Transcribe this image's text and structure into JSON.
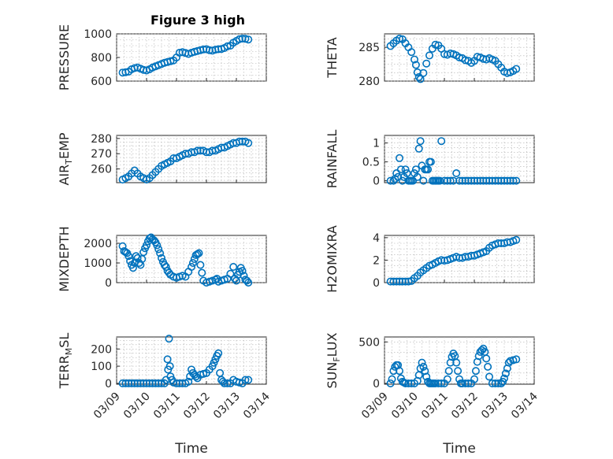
{
  "figure_title": "Figure 3 high",
  "colors": {
    "marker": "#0072BD",
    "axis": "#262626",
    "grid": "#b0b0b0"
  },
  "x_tick_labels": [
    "03/09",
    "03/10",
    "03/11",
    "03/12",
    "03/13",
    "03/14"
  ],
  "x_label": "Time",
  "chart_data": [
    {
      "id": "pressure",
      "type": "scatter",
      "title": "Figure 3 high",
      "ylabel": "PRESSURE",
      "ylabel_sub": "",
      "xlim": [
        0,
        5
      ],
      "ylim": [
        600,
        1000
      ],
      "yticks": [
        600,
        800,
        1000
      ],
      "x": [
        0.2,
        0.3,
        0.4,
        0.5,
        0.6,
        0.7,
        0.8,
        0.9,
        1.0,
        1.1,
        1.2,
        1.3,
        1.4,
        1.5,
        1.6,
        1.7,
        1.8,
        1.9,
        2.0,
        2.1,
        2.2,
        2.3,
        2.4,
        2.5,
        2.6,
        2.7,
        2.8,
        2.9,
        3.0,
        3.1,
        3.2,
        3.3,
        3.4,
        3.5,
        3.6,
        3.7,
        3.8,
        3.9,
        4.0,
        4.1,
        4.2,
        4.3,
        4.4
      ],
      "y": [
        672,
        675,
        680,
        700,
        710,
        715,
        705,
        695,
        690,
        700,
        715,
        725,
        735,
        745,
        755,
        762,
        768,
        775,
        800,
        840,
        845,
        838,
        830,
        840,
        848,
        855,
        862,
        868,
        870,
        862,
        858,
        866,
        870,
        872,
        880,
        895,
        900,
        925,
        940,
        955,
        960,
        958,
        952
      ]
    },
    {
      "id": "theta",
      "type": "scatter",
      "title": "",
      "ylabel": "THETA",
      "ylabel_sub": "",
      "xlim": [
        0,
        5
      ],
      "ylim": [
        280,
        287
      ],
      "yticks": [
        280,
        285
      ],
      "x": [
        0.2,
        0.3,
        0.4,
        0.5,
        0.6,
        0.7,
        0.8,
        0.9,
        1.0,
        1.05,
        1.1,
        1.15,
        1.2,
        1.3,
        1.4,
        1.5,
        1.6,
        1.7,
        1.8,
        1.9,
        2.0,
        2.1,
        2.2,
        2.3,
        2.4,
        2.5,
        2.6,
        2.7,
        2.8,
        2.9,
        3.0,
        3.1,
        3.2,
        3.3,
        3.4,
        3.5,
        3.6,
        3.7,
        3.8,
        3.9,
        4.0,
        4.1,
        4.2,
        4.3,
        4.4
      ],
      "y": [
        285.2,
        285.6,
        286.0,
        286.3,
        286.2,
        285.6,
        285.0,
        284.3,
        283.2,
        282.4,
        281.3,
        280.6,
        280.3,
        281.2,
        282.6,
        283.8,
        284.8,
        285.4,
        285.3,
        284.8,
        284.0,
        283.9,
        284.1,
        284.0,
        283.8,
        283.5,
        283.4,
        283.1,
        283.0,
        282.7,
        283.0,
        283.6,
        283.5,
        283.3,
        283.2,
        283.4,
        283.2,
        283.0,
        282.5,
        282.0,
        281.4,
        281.2,
        281.3,
        281.5,
        281.8
      ]
    },
    {
      "id": "air_temp",
      "type": "scatter",
      "title": "",
      "ylabel": "AIR",
      "ylabel_sub": "T",
      "ylabel_suffix": "EMP",
      "xlim": [
        0,
        5
      ],
      "ylim": [
        251,
        282
      ],
      "yticks": [
        260,
        270,
        280
      ],
      "x": [
        0.2,
        0.3,
        0.4,
        0.5,
        0.6,
        0.7,
        0.8,
        0.9,
        1.0,
        1.1,
        1.2,
        1.3,
        1.4,
        1.5,
        1.6,
        1.7,
        1.8,
        1.9,
        2.0,
        2.1,
        2.2,
        2.3,
        2.4,
        2.5,
        2.6,
        2.7,
        2.8,
        2.9,
        3.0,
        3.1,
        3.2,
        3.3,
        3.4,
        3.5,
        3.6,
        3.7,
        3.8,
        3.9,
        4.0,
        4.1,
        4.2,
        4.3,
        4.4
      ],
      "y": [
        253,
        254,
        255,
        257,
        259,
        257,
        255,
        254,
        253,
        254,
        256,
        258,
        260,
        262,
        263,
        264,
        265,
        267,
        267,
        268,
        269,
        270,
        270,
        271,
        271,
        272,
        272,
        272,
        271,
        271,
        272,
        272,
        273,
        274,
        274,
        275,
        276,
        277,
        277,
        278,
        278,
        278,
        277
      ]
    },
    {
      "id": "rainfall",
      "type": "scatter",
      "title": "",
      "ylabel": "RAINFALL",
      "ylabel_sub": "",
      "xlim": [
        0,
        5
      ],
      "ylim": [
        -0.05,
        1.2
      ],
      "yticks": [
        0,
        0.5,
        1
      ],
      "x": [
        0.2,
        0.3,
        0.35,
        0.4,
        0.45,
        0.5,
        0.55,
        0.6,
        0.65,
        0.7,
        0.75,
        0.8,
        0.85,
        0.9,
        0.95,
        1.0,
        1.05,
        1.1,
        1.15,
        1.2,
        1.25,
        1.3,
        1.35,
        1.4,
        1.45,
        1.5,
        1.55,
        1.6,
        1.65,
        1.7,
        1.75,
        1.8,
        1.85,
        1.9,
        2.0,
        2.1,
        2.2,
        2.3,
        2.4,
        2.5,
        2.6,
        2.7,
        2.8,
        2.9,
        3.0,
        3.1,
        3.2,
        3.3,
        3.4,
        3.5,
        3.6,
        3.7,
        3.8,
        3.9,
        4.0,
        4.1,
        4.2,
        4.3,
        4.4
      ],
      "y": [
        0,
        0,
        0.05,
        0.2,
        0.1,
        0.6,
        0.3,
        0,
        0.1,
        0.3,
        0.2,
        0,
        0,
        0,
        0,
        0.2,
        0.3,
        0.1,
        0.85,
        1.05,
        0.4,
        0,
        0.3,
        0.3,
        0.3,
        0.5,
        0.5,
        0,
        0,
        0,
        0,
        0,
        0,
        1.05,
        0,
        0,
        0,
        0,
        0.2,
        0,
        0,
        0,
        0,
        0,
        0,
        0,
        0,
        0,
        0,
        0,
        0,
        0,
        0,
        0,
        0,
        0,
        0,
        0,
        0
      ]
    },
    {
      "id": "mixdepth",
      "type": "scatter",
      "title": "",
      "ylabel": "MIXDEPTH",
      "ylabel_sub": "",
      "xlim": [
        0,
        5
      ],
      "ylim": [
        0,
        2400
      ],
      "yticks": [
        0,
        1000,
        2000
      ],
      "x": [
        0.2,
        0.25,
        0.3,
        0.35,
        0.4,
        0.45,
        0.5,
        0.55,
        0.6,
        0.65,
        0.7,
        0.75,
        0.8,
        0.85,
        0.9,
        0.95,
        1.0,
        1.05,
        1.1,
        1.15,
        1.2,
        1.25,
        1.3,
        1.35,
        1.4,
        1.45,
        1.5,
        1.55,
        1.6,
        1.65,
        1.7,
        1.75,
        1.8,
        1.9,
        2.0,
        2.1,
        2.2,
        2.3,
        2.4,
        2.5,
        2.55,
        2.6,
        2.65,
        2.7,
        2.75,
        2.8,
        2.85,
        2.9,
        3.0,
        3.1,
        3.2,
        3.3,
        3.35,
        3.4,
        3.5,
        3.6,
        3.7,
        3.8,
        3.9,
        3.95,
        4.0,
        4.05,
        4.1,
        4.15,
        4.2,
        4.25,
        4.3,
        4.35,
        4.4
      ],
      "y": [
        1850,
        1600,
        1550,
        1500,
        1350,
        1100,
        900,
        750,
        1000,
        1350,
        1250,
        1000,
        900,
        1200,
        1550,
        1750,
        1900,
        2100,
        2250,
        2300,
        2200,
        2150,
        2050,
        1900,
        1700,
        1500,
        1250,
        1050,
        900,
        800,
        600,
        500,
        400,
        300,
        250,
        300,
        350,
        300,
        550,
        800,
        1000,
        1200,
        1400,
        1450,
        1500,
        900,
        500,
        100,
        0,
        50,
        100,
        150,
        200,
        50,
        100,
        150,
        200,
        450,
        800,
        200,
        100,
        400,
        550,
        750,
        600,
        350,
        150,
        100,
        0
      ]
    },
    {
      "id": "h2omixra",
      "type": "scatter",
      "title": "",
      "ylabel": "H2OMIXRA",
      "ylabel_sub": "",
      "xlim": [
        0,
        5
      ],
      "ylim": [
        0,
        4.2
      ],
      "yticks": [
        0,
        2,
        4
      ],
      "x": [
        0.2,
        0.3,
        0.4,
        0.5,
        0.6,
        0.7,
        0.8,
        0.9,
        1.0,
        1.1,
        1.2,
        1.3,
        1.4,
        1.5,
        1.6,
        1.7,
        1.8,
        1.9,
        2.0,
        2.1,
        2.2,
        2.3,
        2.4,
        2.5,
        2.6,
        2.7,
        2.8,
        2.9,
        3.0,
        3.1,
        3.2,
        3.3,
        3.4,
        3.5,
        3.6,
        3.7,
        3.8,
        3.9,
        4.0,
        4.1,
        4.2,
        4.3,
        4.4
      ],
      "y": [
        0.1,
        0.1,
        0.1,
        0.1,
        0.1,
        0.1,
        0.1,
        0.15,
        0.4,
        0.6,
        0.9,
        1.1,
        1.3,
        1.5,
        1.6,
        1.75,
        1.9,
        2.0,
        1.95,
        2.0,
        2.1,
        2.2,
        2.3,
        2.2,
        2.2,
        2.3,
        2.3,
        2.4,
        2.4,
        2.5,
        2.6,
        2.7,
        2.8,
        3.1,
        3.3,
        3.4,
        3.5,
        3.5,
        3.5,
        3.6,
        3.6,
        3.7,
        3.8
      ]
    },
    {
      "id": "terr_msl",
      "type": "scatter",
      "title": "",
      "ylabel": "TERR",
      "ylabel_sub": "M",
      "ylabel_suffix": "SL",
      "xlim": [
        0,
        5
      ],
      "ylim": [
        -5,
        270
      ],
      "yticks": [
        0,
        100,
        200
      ],
      "x": [
        0.2,
        0.3,
        0.4,
        0.5,
        0.6,
        0.7,
        0.8,
        0.9,
        1.0,
        1.1,
        1.2,
        1.3,
        1.4,
        1.5,
        1.6,
        1.65,
        1.7,
        1.72,
        1.75,
        1.78,
        1.8,
        1.85,
        1.9,
        2.0,
        2.1,
        2.2,
        2.3,
        2.4,
        2.45,
        2.5,
        2.55,
        2.6,
        2.65,
        2.7,
        2.8,
        2.9,
        3.0,
        3.1,
        3.2,
        3.25,
        3.3,
        3.35,
        3.4,
        3.45,
        3.5,
        3.55,
        3.6,
        3.7,
        3.8,
        3.9,
        4.0,
        4.1,
        4.2,
        4.3,
        4.4
      ],
      "y": [
        0,
        0,
        0,
        0,
        0,
        0,
        0,
        0,
        0,
        0,
        0,
        0,
        0,
        0,
        0,
        20,
        140,
        80,
        260,
        100,
        40,
        20,
        5,
        0,
        0,
        0,
        0,
        10,
        40,
        80,
        60,
        50,
        40,
        30,
        50,
        55,
        60,
        80,
        100,
        120,
        140,
        160,
        175,
        60,
        20,
        10,
        0,
        0,
        0,
        20,
        10,
        5,
        0,
        20,
        20
      ]
    },
    {
      "id": "sun_flux",
      "type": "scatter",
      "title": "",
      "ylabel": "SUN",
      "ylabel_sub": "F",
      "ylabel_suffix": "LUX",
      "xlim": [
        0,
        5
      ],
      "ylim": [
        -10,
        560
      ],
      "yticks": [
        0,
        500
      ],
      "x": [
        0.2,
        0.25,
        0.3,
        0.35,
        0.4,
        0.45,
        0.5,
        0.55,
        0.6,
        0.65,
        0.7,
        0.8,
        0.9,
        1.0,
        1.1,
        1.15,
        1.2,
        1.25,
        1.3,
        1.35,
        1.4,
        1.45,
        1.5,
        1.55,
        1.6,
        1.65,
        1.7,
        1.8,
        1.9,
        2.0,
        2.1,
        2.15,
        2.2,
        2.25,
        2.3,
        2.35,
        2.4,
        2.45,
        2.5,
        2.55,
        2.6,
        2.7,
        2.8,
        2.9,
        3.0,
        3.05,
        3.1,
        3.15,
        3.2,
        3.25,
        3.3,
        3.35,
        3.4,
        3.45,
        3.5,
        3.6,
        3.7,
        3.8,
        3.9,
        3.95,
        4.0,
        4.05,
        4.1,
        4.15,
        4.2,
        4.3,
        4.4
      ],
      "y": [
        0,
        50,
        150,
        200,
        220,
        220,
        150,
        60,
        20,
        10,
        0,
        0,
        0,
        0,
        30,
        100,
        180,
        250,
        200,
        150,
        80,
        20,
        0,
        0,
        0,
        0,
        0,
        0,
        0,
        0,
        50,
        150,
        250,
        320,
        360,
        330,
        250,
        150,
        50,
        0,
        0,
        0,
        0,
        0,
        50,
        150,
        260,
        330,
        380,
        400,
        420,
        380,
        300,
        200,
        80,
        0,
        0,
        0,
        0,
        20,
        60,
        120,
        180,
        250,
        270,
        280,
        290
      ]
    }
  ]
}
